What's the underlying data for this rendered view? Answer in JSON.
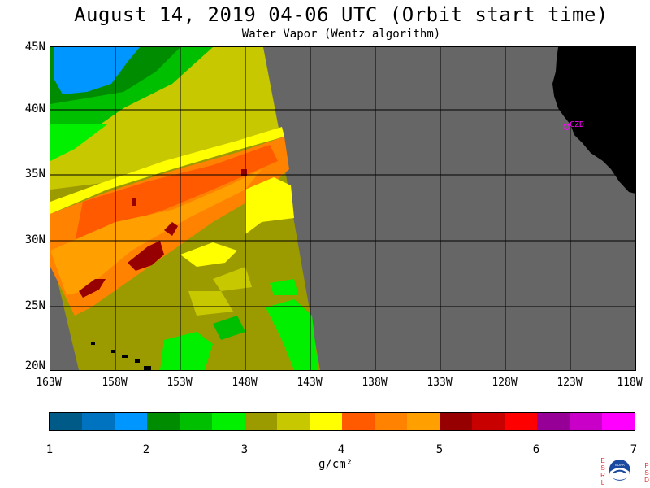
{
  "header": {
    "title": "August 14, 2019  04-06 UTC  (Orbit start time)",
    "subtitle": "Water Vapor (Wentz algorithm)"
  },
  "map": {
    "lat_labels": [
      "45N",
      "40N",
      "35N",
      "30N",
      "25N",
      "20N"
    ],
    "lon_labels": [
      "163W",
      "158W",
      "153W",
      "148W",
      "143W",
      "138W",
      "133W",
      "128W",
      "123W",
      "118W"
    ],
    "station_label": "CZD",
    "background_color": "#666666",
    "land_color": "#000000",
    "station_color": "#ff00ff"
  },
  "colorbar": {
    "ticks": [
      "1",
      "2",
      "3",
      "4",
      "5",
      "6",
      "7"
    ],
    "unit": "g/cm²",
    "colors": [
      "#005a87",
      "#0073c0",
      "#0096ff",
      "#008c00",
      "#00be00",
      "#00f000",
      "#9b9b00",
      "#c8c800",
      "#ffff00",
      "#ff5a00",
      "#ff8200",
      "#ffa000",
      "#960000",
      "#c80000",
      "#ff0000",
      "#960096",
      "#c800c8",
      "#ff00ff"
    ]
  },
  "logo": {
    "left_letters": [
      "E",
      "S",
      "R",
      "L"
    ],
    "right_letters": [
      "P",
      "S",
      "D"
    ],
    "center_text": "NOAA"
  }
}
